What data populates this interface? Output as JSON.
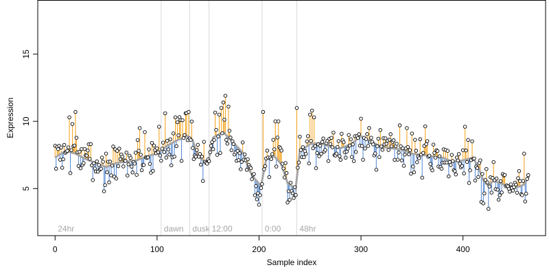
{
  "chart_data": {
    "type": "scatter",
    "title": "",
    "xlabel": "Sample index",
    "ylabel": "Expression",
    "xlim": [
      -17,
      481
    ],
    "ylim": [
      1.5,
      19
    ],
    "x_ticks": [
      0,
      100,
      200,
      300,
      400
    ],
    "y_ticks": [
      5,
      10,
      15
    ],
    "grid": false,
    "legend": "none",
    "colors": {
      "points_fill": "#ffffff",
      "points_stroke": "#000000",
      "segment_above": "#f5a623",
      "segment_below": "#5b8fd6",
      "smooth_line": "#a6a6a6",
      "marker_line": "#d9d9d9",
      "marker_text": "#a6a6a6",
      "axis": "#000000"
    },
    "markers": [
      {
        "x": 0,
        "label": "24hr"
      },
      {
        "x": 104,
        "label": "dawn"
      },
      {
        "x": 132,
        "label": "dusk"
      },
      {
        "x": 151,
        "label": "12:00"
      },
      {
        "x": 203,
        "label": "0:00"
      },
      {
        "x": 237,
        "label": "48hr"
      }
    ],
    "knots": [
      [
        0,
        7.3
      ],
      [
        10,
        7.8
      ],
      [
        20,
        7.6
      ],
      [
        30,
        7.2
      ],
      [
        40,
        6.9
      ],
      [
        50,
        6.6
      ],
      [
        60,
        6.9
      ],
      [
        70,
        7.0
      ],
      [
        80,
        7.1
      ],
      [
        90,
        7.4
      ],
      [
        100,
        7.6
      ],
      [
        110,
        8.2
      ],
      [
        120,
        8.6
      ],
      [
        130,
        8.9
      ],
      [
        135,
        8.6
      ],
      [
        140,
        7.4
      ],
      [
        145,
        7.1
      ],
      [
        150,
        6.9
      ],
      [
        155,
        8.8
      ],
      [
        160,
        9.0
      ],
      [
        165,
        9.2
      ],
      [
        175,
        8.4
      ],
      [
        185,
        7.6
      ],
      [
        190,
        6.4
      ],
      [
        195,
        5.8
      ],
      [
        202,
        5.2
      ],
      [
        207,
        7.2
      ],
      [
        215,
        7.4
      ],
      [
        222,
        6.8
      ],
      [
        228,
        5.4
      ],
      [
        236,
        5.0
      ],
      [
        240,
        7.8
      ],
      [
        250,
        8.3
      ],
      [
        260,
        8.4
      ],
      [
        270,
        8.1
      ],
      [
        280,
        8.0
      ],
      [
        290,
        8.3
      ],
      [
        300,
        8.9
      ],
      [
        310,
        8.5
      ],
      [
        320,
        8.1
      ],
      [
        330,
        8.0
      ],
      [
        340,
        7.9
      ],
      [
        350,
        7.6
      ],
      [
        360,
        7.5
      ],
      [
        370,
        7.4
      ],
      [
        380,
        7.3
      ],
      [
        390,
        7.0
      ],
      [
        400,
        7.1
      ],
      [
        410,
        7.3
      ],
      [
        415,
        6.6
      ],
      [
        420,
        5.6
      ],
      [
        425,
        5.2
      ],
      [
        430,
        5.6
      ],
      [
        440,
        5.3
      ],
      [
        450,
        5.0
      ],
      [
        460,
        5.3
      ],
      [
        466,
        6.1
      ]
    ],
    "n_samples": 465,
    "noise_sd": 1.05,
    "seed": 7,
    "explicit_points": [
      [
        14,
        10.3
      ],
      [
        17,
        9.8
      ],
      [
        20,
        10.7
      ],
      [
        48,
        4.8
      ],
      [
        83,
        9.5
      ],
      [
        88,
        9.2
      ],
      [
        102,
        9.6
      ],
      [
        108,
        10.6
      ],
      [
        118,
        10.3
      ],
      [
        123,
        10.1
      ],
      [
        128,
        10.6
      ],
      [
        131,
        10.7
      ],
      [
        161,
        10.5
      ],
      [
        163,
        11.0
      ],
      [
        165,
        11.4
      ],
      [
        167,
        11.9
      ],
      [
        170,
        11.1
      ],
      [
        196,
        4.5
      ],
      [
        198,
        4.2
      ],
      [
        200,
        3.8
      ],
      [
        204,
        10.7
      ],
      [
        216,
        10.0
      ],
      [
        219,
        10.0
      ],
      [
        229,
        4.8
      ],
      [
        234,
        4.3
      ],
      [
        237,
        11.0
      ],
      [
        252,
        10.8
      ],
      [
        250,
        10.5
      ],
      [
        254,
        10.3
      ],
      [
        300,
        10.2
      ],
      [
        338,
        9.7
      ],
      [
        345,
        9.5
      ],
      [
        402,
        9.6
      ],
      [
        418,
        4.0
      ],
      [
        420,
        3.9
      ],
      [
        460,
        7.6
      ],
      [
        464,
        6.0
      ]
    ]
  }
}
